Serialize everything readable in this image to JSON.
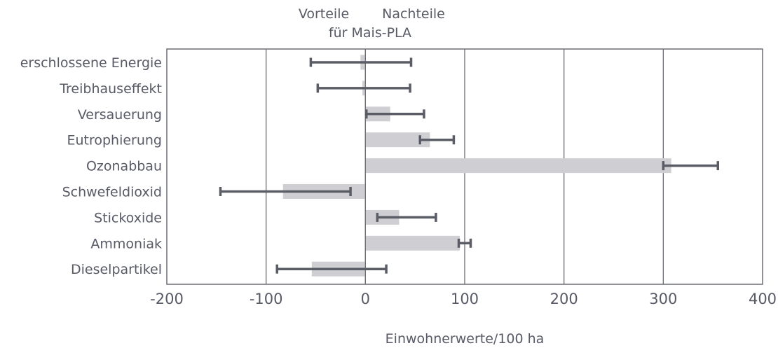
{
  "chart_data": {
    "type": "bar",
    "orientation": "horizontal",
    "top_labels": {
      "left": "Vorteile",
      "right": "Nachteile",
      "sub": "für Mais-PLA"
    },
    "xlabel": "Einwohnerwerte/100 ha",
    "xlim": [
      -200,
      400
    ],
    "xticks": [
      -200,
      -100,
      0,
      100,
      200,
      300,
      400
    ],
    "xtick_labels": [
      "-200",
      "-100",
      "0",
      "100",
      "200",
      "300",
      "400"
    ],
    "categories": [
      "erschlossene Energie",
      "Treibhauseffekt",
      "Versauerung",
      "Eutrophierung",
      "Ozonabbau",
      "Schwefeldioxid",
      "Stickoxide",
      "Ammoniak",
      "Dieselpartikel"
    ],
    "values": [
      -5,
      -3,
      25,
      65,
      308,
      -83,
      34,
      95,
      -54
    ],
    "error_low": [
      -55,
      -48,
      1,
      55,
      300,
      -146,
      12,
      94,
      -89
    ],
    "error_high": [
      46,
      45,
      59,
      89,
      355,
      -15,
      71,
      106,
      21
    ],
    "grid": "vertical",
    "colors": {
      "bar": "#cfcfd3",
      "error_bar": "#5a5c66",
      "axis": "#6c6d75",
      "text": "#585a66"
    }
  }
}
